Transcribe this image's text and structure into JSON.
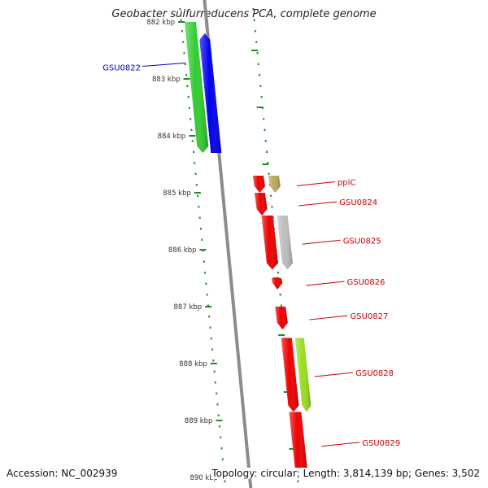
{
  "header": {
    "title": "Geobacter sulfurreducens PCA, complete genome"
  },
  "footer": {
    "accession": "Accession: NC_002939",
    "summary": "Topology: circular; Length: 3,814,139 bp; Genes: 3,502"
  },
  "colors": {
    "backbone": "#8c8c8c",
    "left_label": "#0000cc",
    "right_label": "#cc0000",
    "tick": "#228822",
    "dot": "#2e8b2e"
  },
  "ruler": {
    "unit": "kbp",
    "ticks": [
      {
        "pos_kbp": 882,
        "label": "882 kbp"
      },
      {
        "pos_kbp": 883,
        "label": "883 kbp"
      },
      {
        "pos_kbp": 884,
        "label": "884 kbp"
      },
      {
        "pos_kbp": 885,
        "label": "885 kbp"
      },
      {
        "pos_kbp": 886,
        "label": "886 kbp"
      },
      {
        "pos_kbp": 887,
        "label": "887 kbp"
      },
      {
        "pos_kbp": 888,
        "label": "888 kbp"
      },
      {
        "pos_kbp": 889,
        "label": "889 kbp"
      },
      {
        "pos_kbp": 890,
        "label": "890 kbp"
      }
    ]
  },
  "genes": [
    {
      "name": "GSU0822",
      "label_side": "left",
      "color": "#0000ee",
      "start_kbp": 882.2,
      "end_kbp": 884.3,
      "strand": "-"
    },
    {
      "name": "",
      "label_side": "left",
      "color": "#33cc33",
      "start_kbp": 882.0,
      "end_kbp": 884.3,
      "strand": "+"
    },
    {
      "name": "ppiC",
      "label_side": "right",
      "color": "#b8a860",
      "start_kbp": 884.7,
      "end_kbp": 885.0,
      "strand": "+"
    },
    {
      "name": "",
      "label_side": "right",
      "color": "#ee0000",
      "start_kbp": 884.7,
      "end_kbp": 885.0,
      "strand": "+"
    },
    {
      "name": "GSU0824",
      "label_side": "right",
      "color": "#ee0000",
      "start_kbp": 885.0,
      "end_kbp": 885.4,
      "strand": "+"
    },
    {
      "name": "GSU0825",
      "label_side": "right",
      "color": "#bdbdbd",
      "start_kbp": 885.4,
      "end_kbp": 886.35,
      "strand": "+"
    },
    {
      "name": "",
      "label_side": "right",
      "color": "#ee0000",
      "start_kbp": 885.4,
      "end_kbp": 886.35,
      "strand": "+"
    },
    {
      "name": "GSU0826",
      "label_side": "right",
      "color": "#ee0000",
      "start_kbp": 886.5,
      "end_kbp": 886.7,
      "strand": "+"
    },
    {
      "name": "GSU0827",
      "label_side": "right",
      "color": "#ee0000",
      "start_kbp": 887.0,
      "end_kbp": 887.4,
      "strand": "+"
    },
    {
      "name": "GSU0828",
      "label_side": "right",
      "color": "#99dd22",
      "start_kbp": 887.55,
      "end_kbp": 888.85,
      "strand": "+"
    },
    {
      "name": "",
      "label_side": "right",
      "color": "#ee0000",
      "start_kbp": 887.55,
      "end_kbp": 888.85,
      "strand": "+"
    },
    {
      "name": "GSU0829",
      "label_side": "right",
      "color": "#ee0000",
      "start_kbp": 888.85,
      "end_kbp": 890.0,
      "strand": "+"
    }
  ]
}
